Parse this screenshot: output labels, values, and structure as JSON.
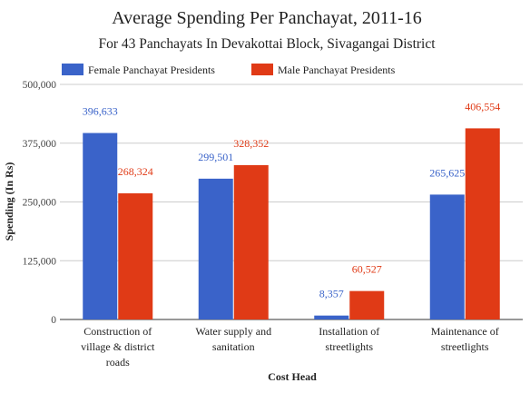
{
  "chart_data": {
    "type": "bar",
    "title": "Average Spending Per Panchayat, 2011-16",
    "subtitle": "For 43 Panchayats In Devakottai Block, Sivagangai District",
    "xlabel": "Cost Head",
    "ylabel": "Spending (In Rs)",
    "ylim": [
      0,
      500000
    ],
    "yticks": [
      0,
      125000,
      250000,
      375000,
      500000
    ],
    "ytick_labels": [
      "0",
      "125,000",
      "250,000",
      "375,000",
      "500,000"
    ],
    "grid": true,
    "legend_position": "top-left",
    "categories": [
      [
        "Construction of",
        "village & district",
        "roads"
      ],
      [
        "Water supply and",
        "sanitation"
      ],
      [
        "Installation of",
        "streetlights"
      ],
      [
        "Maintenance of",
        "streetlights"
      ]
    ],
    "series": [
      {
        "name": "Female Panchayat Presidents",
        "color": "#3a63c9",
        "values": [
          396633,
          299501,
          8357,
          265625
        ],
        "labels": [
          "396,633",
          "299,501",
          "8,357",
          "265,625"
        ]
      },
      {
        "name": "Male Panchayat Presidents",
        "color": "#e03a16",
        "values": [
          268324,
          328352,
          60527,
          406554
        ],
        "labels": [
          "268,324",
          "328,352",
          "60,527",
          "406,554"
        ]
      }
    ]
  }
}
